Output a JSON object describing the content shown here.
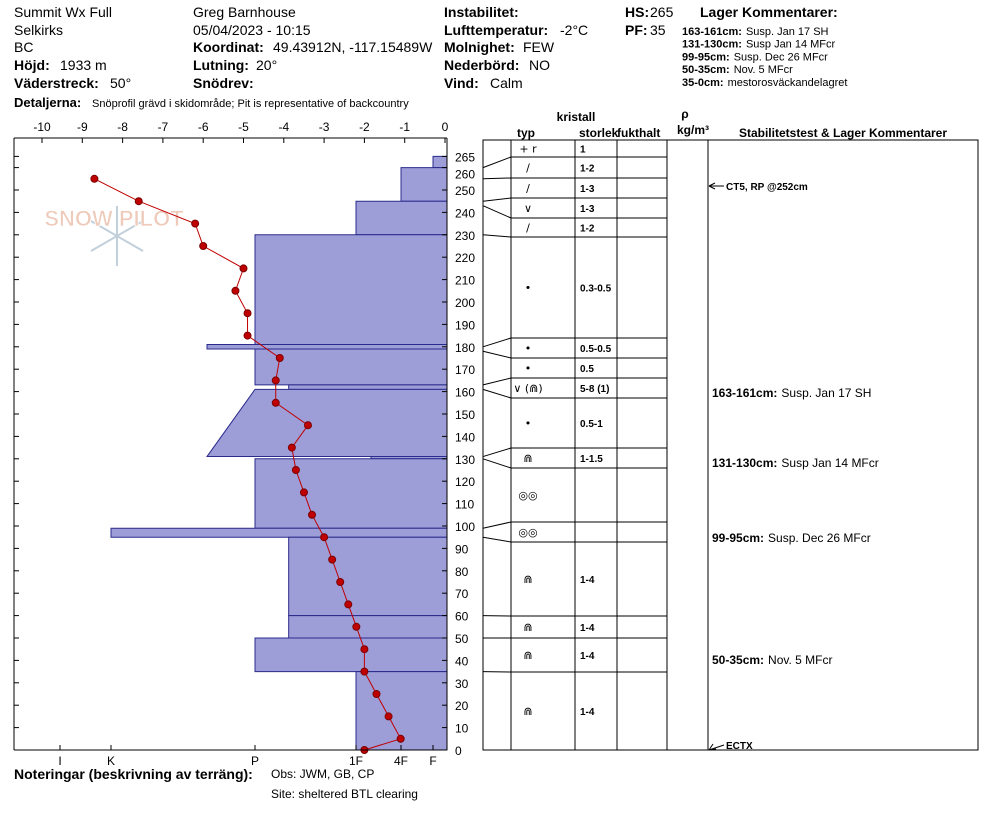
{
  "header": {
    "site": "Summit Wx Full",
    "range": "Selkirks",
    "region": "BC",
    "elevation_label": "Höjd:",
    "elevation": "1933 m",
    "aspect_label": "Väderstreck:",
    "aspect": "50°",
    "observer": "Greg Barnhouse",
    "datetime": "05/04/2023 - 10:15",
    "coord_label": "Koordinat:",
    "coord": "49.43912N, -117.15489W",
    "slope_label": "Lutning:",
    "slope": "20°",
    "drift_label": "Snödrev:",
    "instability_label": "Instabilitet:",
    "airtemp_label": "Lufttemperatur:",
    "airtemp": "-2°C",
    "sky_label": "Molnighet:",
    "sky": "FEW",
    "precip_label": "Nederbörd:",
    "precip": "NO",
    "wind_label": "Vind:",
    "wind": "Calm",
    "hs_label": "HS:",
    "hs": "265",
    "pf_label": "PF:",
    "pf": "35",
    "layer_comments_title": "Lager Kommentarer:",
    "layer_comments": [
      {
        "label": "163-161cm:",
        "text": "Susp. Jan 17 SH"
      },
      {
        "label": "131-130cm:",
        "text": "Susp Jan 14 MFcr"
      },
      {
        "label": "99-95cm:",
        "text": "Susp. Dec 26 MFcr"
      },
      {
        "label": "50-35cm:",
        "text": "Nov. 5 MFcr"
      },
      {
        "label": "35-0cm:",
        "text": "mestorosväckandelagret"
      }
    ],
    "details_label": "Detaljerna:",
    "details": "Snöprofil grävd i skidområde;  Pit is representative of backcountry"
  },
  "chart_data": {
    "type": "snowprofile",
    "logo": "SNOW PILOT",
    "xlim": [
      -10,
      0
    ],
    "xticks": [
      -10,
      -9,
      -8,
      -7,
      -6,
      -5,
      -4,
      -3,
      -2,
      -1,
      0
    ],
    "ylim": [
      0,
      265
    ],
    "yticks": [
      0,
      10,
      20,
      30,
      40,
      50,
      60,
      70,
      80,
      90,
      100,
      110,
      120,
      130,
      140,
      150,
      160,
      170,
      180,
      190,
      200,
      210,
      220,
      230,
      240,
      250,
      260,
      265
    ],
    "hardness_ticks": [
      "I",
      "K",
      "P",
      "1F",
      "4F",
      "F"
    ],
    "layers": [
      {
        "top": 265,
        "bottom": 260,
        "hardness": "F"
      },
      {
        "top": 260,
        "bottom": 245,
        "hardness": "4F"
      },
      {
        "top": 245,
        "bottom": 230,
        "hardness": "1F"
      },
      {
        "top": 230,
        "bottom": 181,
        "hardness": "P"
      },
      {
        "top": 181,
        "bottom": 179,
        "hardness": "P+"
      },
      {
        "top": 179,
        "bottom": 163,
        "hardness": "P"
      },
      {
        "top": 163,
        "bottom": 161,
        "hardness": "P-"
      },
      {
        "top": 161,
        "bottom": 131,
        "hardness": "P",
        "hardness_bottom": "P+"
      },
      {
        "top": 131,
        "bottom": 130,
        "hardness": "1F-"
      },
      {
        "top": 130,
        "bottom": 99,
        "hardness": "P"
      },
      {
        "top": 99,
        "bottom": 95,
        "hardness": "K"
      },
      {
        "top": 95,
        "bottom": 60,
        "hardness": "P-"
      },
      {
        "top": 60,
        "bottom": 50,
        "hardness": "P-"
      },
      {
        "top": 50,
        "bottom": 35,
        "hardness": "P"
      },
      {
        "top": 35,
        "bottom": 0,
        "hardness": "1F"
      }
    ],
    "temperature": {
      "color": "#c00000",
      "heights": [
        255,
        245,
        235,
        225,
        215,
        205,
        195,
        185,
        175,
        165,
        155,
        145,
        135,
        125,
        115,
        105,
        95,
        85,
        75,
        65,
        55,
        45,
        35,
        25,
        15,
        5,
        0
      ],
      "values": [
        -8.7,
        -7.6,
        -6.2,
        -6.0,
        -5.0,
        -5.2,
        -4.9,
        -4.9,
        -4.1,
        -4.2,
        -4.2,
        -3.4,
        -3.8,
        -3.7,
        -3.5,
        -3.3,
        -3.0,
        -2.8,
        -2.6,
        -2.4,
        -2.2,
        -2.0,
        -2.0,
        -1.7,
        -1.4,
        -1.1,
        -2.0
      ]
    },
    "table_headers": {
      "crystal": "kristall",
      "type": "typ",
      "size": "storlek",
      "moisture": "fukthalt",
      "rho": "ρ",
      "density": "kg/m³",
      "comments": "Stabilitetstest & Lager Kommentarer"
    },
    "crystals": [
      {
        "type": "+ r",
        "size": "1"
      },
      {
        "type": "∕",
        "size": "1-2"
      },
      {
        "type": "∕",
        "size": "1-3"
      },
      {
        "type": "∨",
        "size": "1-3"
      },
      {
        "type": "∕",
        "size": "1-2"
      },
      {
        "type": "•",
        "size": "0.3-0.5"
      },
      {
        "type": "•",
        "size": "0.5-0.5"
      },
      {
        "type": "•",
        "size": "0.5"
      },
      {
        "type": "∨ (⋒)",
        "size": "5-8 (1)"
      },
      {
        "type": "•",
        "size": "0.5-1"
      },
      {
        "type": "⋒",
        "size": "1-1.5"
      },
      {
        "type": "◎◎"
      },
      {
        "type": "◎◎"
      },
      {
        "type": "⋒",
        "size": "1-4"
      },
      {
        "type": "⋒",
        "size": "1-4"
      },
      {
        "type": "⋒",
        "size": "1-4"
      },
      {
        "type": "⋒",
        "size": "1-4"
      }
    ],
    "stability_tests": [
      {
        "label": "CT5, RP @252cm"
      },
      {
        "label": "ECTX"
      }
    ],
    "layer_notes": [
      {
        "label": "163-161cm:",
        "text": "Susp. Jan 17 SH"
      },
      {
        "label": "131-130cm:",
        "text": "Susp Jan 14 MFcr"
      },
      {
        "label": "99-95cm:",
        "text": "Susp. Dec 26 MFcr"
      },
      {
        "label": "50-35cm:",
        "text": "Nov. 5 MFcr"
      }
    ]
  },
  "footer": {
    "notes_label": "Noteringar (beskrivning av terräng):",
    "notes": "Obs: JWM, GB, CP",
    "site_note": "Site: sheltered BTL clearing"
  }
}
